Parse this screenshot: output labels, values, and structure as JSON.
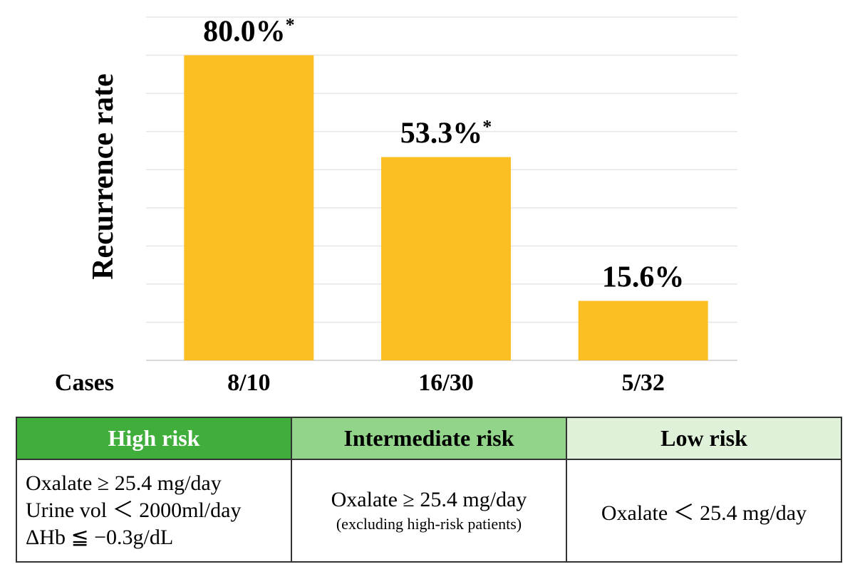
{
  "chart_data": {
    "type": "bar",
    "ylabel": "Recurrence rate",
    "ylim": [
      0,
      90
    ],
    "grid": true,
    "categories": [
      "High risk",
      "Intermediate risk",
      "Low risk"
    ],
    "values": [
      80.0,
      53.3,
      15.6
    ],
    "bar_labels": [
      "80.0%",
      "53.3%",
      "15.6%"
    ],
    "significance_marks": [
      "*",
      "*",
      ""
    ],
    "cases_label": "Cases",
    "cases": [
      "8/10",
      "16/30",
      "5/32"
    ],
    "bar_color": "#fbbf24"
  },
  "table": {
    "headers": [
      "High risk",
      "Intermediate risk",
      "Low risk"
    ],
    "header_colors": [
      "#3fae3b",
      "#93d48b",
      "#dff2d9"
    ],
    "high_criteria": [
      "Oxalate ≥ 25.4 mg/day",
      "Urine vol ＜ 2000ml/day",
      "ΔHb ≦ −0.3g/dL"
    ],
    "intermediate_criteria": "Oxalate ≥ 25.4 mg/day",
    "intermediate_note": "(excluding high-risk patients)",
    "low_criteria": "Oxalate ＜ 25.4 mg/day"
  }
}
